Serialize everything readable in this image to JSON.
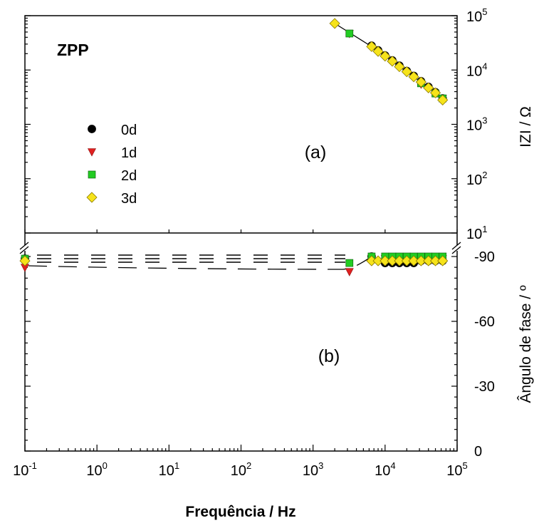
{
  "chart_data": {
    "type": "scatter",
    "x_label": "Frequência  / Hz",
    "x_scale": "log",
    "x_range": [
      0.1,
      100000
    ],
    "x_ticks": [
      {
        "base": "10",
        "exp": "-1"
      },
      {
        "base": "10",
        "exp": "0"
      },
      {
        "base": "10",
        "exp": "1"
      },
      {
        "base": "10",
        "exp": "2"
      },
      {
        "base": "10",
        "exp": "3"
      },
      {
        "base": "10",
        "exp": "4"
      },
      {
        "base": "10",
        "exp": "5"
      }
    ],
    "sample_label": "ZPP",
    "legend_placement": "left",
    "series": [
      {
        "name": "0d",
        "marker": "circle",
        "color": "#000000"
      },
      {
        "name": "1d",
        "marker": "triangle-down",
        "color": "#e02020"
      },
      {
        "name": "2d",
        "marker": "square",
        "color": "#22cc22"
      },
      {
        "name": "3d",
        "marker": "diamond",
        "color": "#f6e31a"
      }
    ],
    "panels": [
      {
        "label": "(a)",
        "y_label": "IZI / Ω",
        "y_scale": "log",
        "y_range": [
          10,
          100000
        ],
        "y_ticks": [
          {
            "base": "10",
            "exp": "5"
          },
          {
            "base": "10",
            "exp": "4"
          },
          {
            "base": "10",
            "exp": "3"
          },
          {
            "base": "10",
            "exp": "2"
          },
          {
            "base": "10",
            "exp": "1"
          }
        ],
        "series_points": {
          "0d": [
            [
              6500,
              28000
            ],
            [
              8000,
              23000
            ],
            [
              10000,
              18500
            ],
            [
              12600,
              15000
            ],
            [
              15800,
              12000
            ],
            [
              20000,
              9600
            ],
            [
              25000,
              7800
            ],
            [
              31600,
              6200
            ],
            [
              40000,
              4900
            ],
            [
              50000,
              3900
            ],
            [
              63000,
              3000
            ]
          ],
          "1d": [
            [
              3200,
              47000
            ],
            [
              31600,
              5500
            ],
            [
              63000,
              3000
            ]
          ],
          "2d": [
            [
              3200,
              47000
            ],
            [
              31600,
              5700
            ],
            [
              50000,
              3700
            ],
            [
              63000,
              3000
            ]
          ],
          "3d": [
            [
              2000,
              72000
            ],
            [
              6500,
              27000
            ],
            [
              8000,
              22000
            ],
            [
              10000,
              18000
            ],
            [
              12600,
              14500
            ],
            [
              15800,
              11500
            ],
            [
              20000,
              9300
            ],
            [
              25000,
              7500
            ],
            [
              31600,
              6000
            ],
            [
              40000,
              4700
            ],
            [
              50000,
              3800
            ],
            [
              63000,
              2800
            ]
          ]
        }
      },
      {
        "label": "(b)",
        "y_label": "Ângulo de fase / º",
        "y_range": [
          0,
          -90
        ],
        "y_ticks": [
          "-90",
          "-60",
          "-30",
          "0"
        ],
        "series_points": {
          "0d": [
            [
              0.1,
              -89
            ],
            [
              6500,
              -90
            ],
            [
              10000,
              -87
            ],
            [
              12600,
              -87
            ],
            [
              15800,
              -87
            ],
            [
              20000,
              -87
            ],
            [
              25000,
              -87
            ],
            [
              31600,
              -88
            ],
            [
              40000,
              -88
            ],
            [
              50000,
              -88
            ],
            [
              63000,
              -88
            ]
          ],
          "1d": [
            [
              0.1,
              -85
            ],
            [
              3200,
              -83
            ],
            [
              6500,
              -89
            ],
            [
              10000,
              -89
            ],
            [
              12600,
              -89
            ],
            [
              15800,
              -89
            ],
            [
              20000,
              -89
            ],
            [
              25000,
              -89
            ],
            [
              31600,
              -89
            ],
            [
              40000,
              -89
            ],
            [
              50000,
              -89
            ],
            [
              63000,
              -89
            ]
          ],
          "2d": [
            [
              0.1,
              -89
            ],
            [
              3200,
              -87
            ],
            [
              6500,
              -90
            ],
            [
              10000,
              -90
            ],
            [
              12600,
              -90
            ],
            [
              15800,
              -90
            ],
            [
              20000,
              -90
            ],
            [
              25000,
              -90
            ],
            [
              31600,
              -90
            ],
            [
              40000,
              -90
            ],
            [
              50000,
              -90
            ],
            [
              63000,
              -90
            ]
          ],
          "3d": [
            [
              0.1,
              -88
            ],
            [
              6500,
              -88
            ],
            [
              8000,
              -88
            ],
            [
              10000,
              -88
            ],
            [
              12600,
              -88
            ],
            [
              15800,
              -88
            ],
            [
              20000,
              -88
            ],
            [
              25000,
              -88
            ],
            [
              31600,
              -88
            ],
            [
              40000,
              -88
            ],
            [
              50000,
              -88
            ],
            [
              63000,
              -88
            ]
          ]
        }
      }
    ]
  }
}
